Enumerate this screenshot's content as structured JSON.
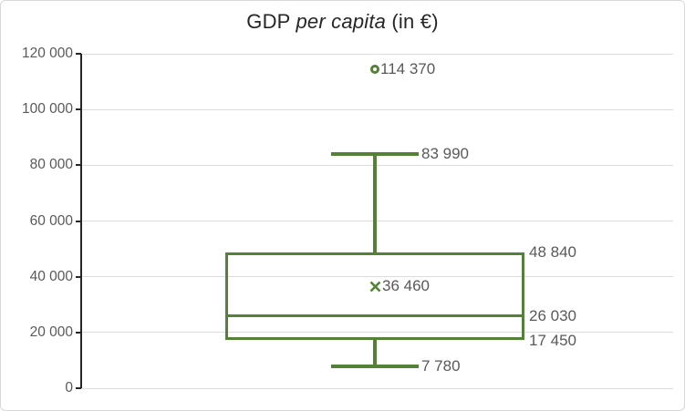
{
  "chart_data": {
    "type": "boxplot",
    "title": {
      "prefix": "GDP ",
      "italic": "per capita",
      "suffix": " (in €)"
    },
    "y_axis": {
      "min": 0,
      "max": 120000,
      "grid": true,
      "ticks": [
        {
          "value": 120000,
          "label": "120 000"
        },
        {
          "value": 100000,
          "label": "100 000"
        },
        {
          "value": 80000,
          "label": "80 000"
        },
        {
          "value": 60000,
          "label": "60 000"
        },
        {
          "value": 40000,
          "label": "40 000"
        },
        {
          "value": 20000,
          "label": "20 000"
        },
        {
          "value": 0,
          "label": "0"
        }
      ]
    },
    "legend": "none",
    "series": [
      {
        "name": "GDP per capita",
        "outlier": {
          "value": 114370,
          "label": "114 370"
        },
        "whisker_max": {
          "value": 83990,
          "label": "83 990"
        },
        "q3": {
          "value": 48840,
          "label": "48 840"
        },
        "mean": {
          "value": 36460,
          "label": "36 460"
        },
        "median": {
          "value": 26030,
          "label": "26 030"
        },
        "q1": {
          "value": 17450,
          "label": "17 450"
        },
        "whisker_min": {
          "value": 7780,
          "label": "7 780"
        }
      }
    ],
    "colors": {
      "series_green": "#538135",
      "label_gray": "#595959",
      "gridline": "#dcdcdc",
      "axis": "#262626",
      "title_text": "#262626"
    }
  }
}
